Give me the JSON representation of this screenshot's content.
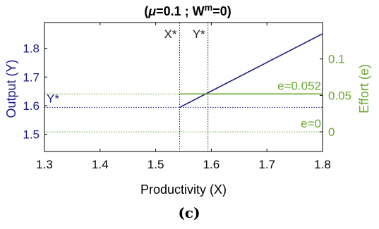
{
  "chart_data": {
    "type": "line",
    "title_prefix": "(",
    "title_mu": "μ",
    "title_mid": "=0.1 ; W",
    "title_sup": "m",
    "title_suffix": "=0)",
    "caption": "(c)",
    "xlabel": "Productivity (X)",
    "ylabel_left": "Output (Y)",
    "ylabel_right": "Effort (e)",
    "xlim": [
      1.3,
      1.8
    ],
    "ylim_left": [
      1.44,
      1.89
    ],
    "ylim_right": [
      -0.027,
      0.15
    ],
    "xticks": [
      1.3,
      1.4,
      1.5,
      1.6,
      1.7,
      1.8
    ],
    "xtick_labels": [
      "1.3",
      "1.4",
      "1.5",
      "1.6",
      "1.7",
      "1.8"
    ],
    "yticks_left": [
      1.5,
      1.6,
      1.7,
      1.8
    ],
    "ytick_labels_left": [
      "1.5",
      "1.6",
      "1.7",
      "1.8"
    ],
    "yticks_right": [
      0,
      0.05,
      0.1
    ],
    "ytick_labels_right": [
      "0",
      "0.05",
      "0.1"
    ],
    "colors": {
      "output": "#1a1a8c",
      "effort": "#6aa832",
      "marker": "#222222",
      "axis": "#000000"
    },
    "series": [
      {
        "axis": "left",
        "x": [
          1.543,
          1.8
        ],
        "y": [
          1.594,
          1.851
        ]
      },
      {
        "axis": "right",
        "x": [
          1.543,
          1.8
        ],
        "y": [
          0.052,
          0.052
        ]
      }
    ],
    "reference_lines": {
      "x_star": 1.543,
      "x_star_label": "X*",
      "y_star_x": 1.594,
      "y_star_x_label": "Y*",
      "y_star_level": 1.594,
      "y_star_level_label": "Y*",
      "e_high": 0.052,
      "e_high_label": "e=0.052",
      "e_zero": 0,
      "e_zero_label": "e=0"
    }
  }
}
